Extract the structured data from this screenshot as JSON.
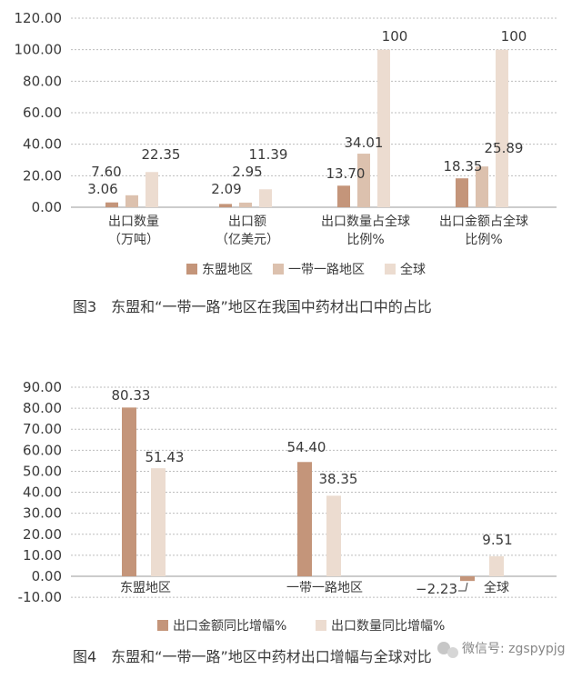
{
  "colors": {
    "asean": "#c4957a",
    "belt_road": "#dcc1ae",
    "global": "#ecdcd0",
    "export_value": "#c4957a",
    "export_qty": "#ecdcd0"
  },
  "watermark": "微信号: zgspypjg",
  "chart_data": [
    {
      "type": "bar",
      "caption": "图3　东盟和“一带一路”地区在我国中药材出口中的占比",
      "categories": [
        [
          "出口数量",
          "（万吨）"
        ],
        [
          "出口额",
          "（亿美元）"
        ],
        [
          "出口数量占全球",
          "比例%"
        ],
        [
          "出口金额占全球",
          "比例%"
        ]
      ],
      "series": [
        {
          "name": "东盟地区",
          "values": [
            3.06,
            2.09,
            13.7,
            18.35
          ],
          "labels": [
            "3.06",
            "2.09",
            "13.70",
            "18.35"
          ]
        },
        {
          "name": "一带一路地区",
          "values": [
            7.6,
            2.95,
            34.01,
            25.89
          ],
          "labels": [
            "7.60",
            "2.95",
            "34.01",
            "25.89"
          ]
        },
        {
          "name": "全球",
          "values": [
            22.35,
            11.39,
            100,
            100
          ],
          "labels": [
            "22.35",
            "11.39",
            "100",
            "100"
          ]
        }
      ],
      "ylim": [
        0,
        120
      ],
      "yticks": [
        "0.00",
        "20.00",
        "40.00",
        "60.00",
        "80.00",
        "100.00",
        "120.00"
      ],
      "grid": true,
      "legend": "bottom"
    },
    {
      "type": "bar",
      "caption": "图4　东盟和“一带一路”地区中药材出口增幅与全球对比",
      "categories": [
        "东盟地区",
        "一带一路地区",
        "全球"
      ],
      "series": [
        {
          "name": "出口金额同比增幅%",
          "values": [
            80.33,
            54.4,
            -2.23
          ],
          "labels": [
            "80.33",
            "54.40",
            "−2.23"
          ]
        },
        {
          "name": "出口数量同比增幅%",
          "values": [
            51.43,
            38.35,
            9.51
          ],
          "labels": [
            "51.43",
            "38.35",
            "9.51"
          ]
        }
      ],
      "ylim": [
        -10,
        90
      ],
      "yticks": [
        "-10.00",
        "0.00",
        "10.00",
        "20.00",
        "30.00",
        "40.00",
        "50.00",
        "60.00",
        "70.00",
        "80.00",
        "90.00"
      ],
      "grid": true,
      "legend": "bottom"
    }
  ]
}
